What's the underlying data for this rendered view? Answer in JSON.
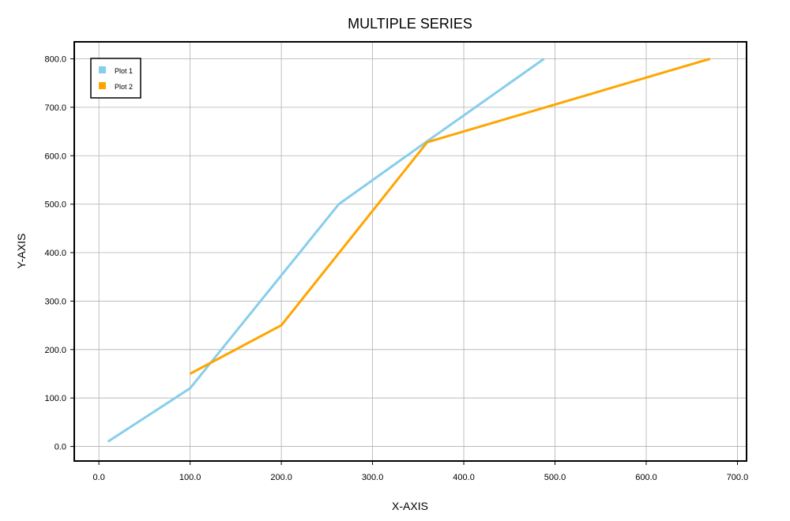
{
  "chart_data": {
    "type": "line",
    "title": "MULTIPLE SERIES",
    "xlabel": "X-AXIS",
    "ylabel": "Y-AXIS",
    "xlim": [
      -27,
      710
    ],
    "ylim": [
      -30,
      835
    ],
    "xticks": [
      0,
      100,
      200,
      300,
      400,
      500,
      600,
      700
    ],
    "yticks": [
      0,
      100,
      200,
      300,
      400,
      500,
      600,
      700,
      800
    ],
    "xtick_labels": [
      "0.0",
      "100.0",
      "200.0",
      "300.0",
      "400.0",
      "500.0",
      "600.0",
      "700.0"
    ],
    "ytick_labels": [
      "0.0",
      "100.0",
      "200.0",
      "300.0",
      "400.0",
      "500.0",
      "600.0",
      "700.0",
      "800.0"
    ],
    "grid": true,
    "legend_position": "top-left",
    "series": [
      {
        "name": "Plot 1",
        "color": "#87CEEB",
        "x": [
          10,
          100,
          263,
          360,
          488
        ],
        "y": [
          10,
          120,
          500,
          630,
          800
        ]
      },
      {
        "name": "Plot 2",
        "color": "#FFA500",
        "x": [
          100,
          200,
          360,
          670
        ],
        "y": [
          150,
          250,
          628,
          800
        ]
      }
    ]
  }
}
